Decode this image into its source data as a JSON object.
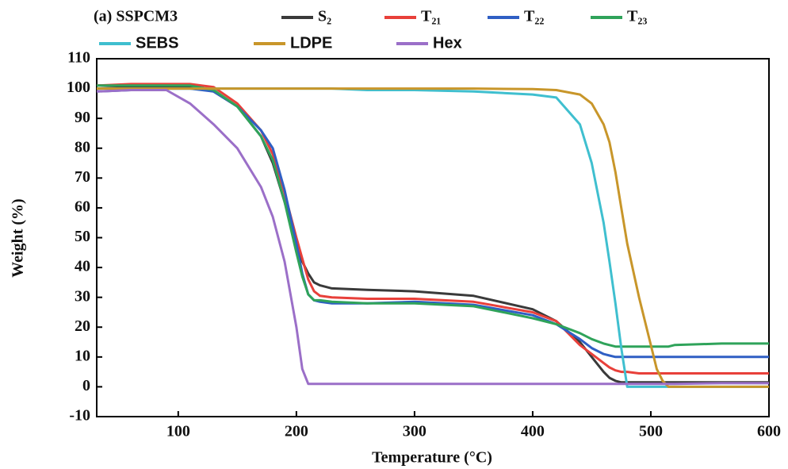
{
  "chart_data": {
    "type": "line",
    "title": "(a) SSPCM3",
    "x_label": "Temperature (°C)",
    "y_label": "Weight (%)",
    "x": [
      31,
      60,
      90,
      110,
      130,
      150,
      170,
      180,
      190,
      200,
      205,
      210,
      215,
      220,
      230,
      260,
      300,
      350,
      400,
      420,
      440,
      450,
      460,
      465,
      470,
      475,
      480,
      490,
      500,
      505,
      510,
      515,
      520,
      560,
      600
    ],
    "series": [
      {
        "name": "S₂",
        "color": "#3a3a3a",
        "values": [
          100,
          100.5,
          100.5,
          100.5,
          99,
          94,
          84,
          75,
          62,
          48,
          42,
          38,
          35,
          34,
          33,
          32.5,
          32,
          30.5,
          26,
          22,
          15,
          10,
          5,
          3,
          2,
          1.5,
          1.5,
          1.5,
          1.5,
          1.5,
          1.5,
          1.5,
          1.5,
          1.5,
          1.5
        ]
      },
      {
        "name": "T₂₁",
        "color": "#e8403a",
        "values": [
          101,
          101.5,
          101.5,
          101.5,
          100.5,
          95,
          86,
          78,
          65,
          50,
          43,
          36,
          32,
          30.5,
          30,
          29.5,
          29.5,
          28.5,
          25,
          22,
          14,
          11,
          8,
          6.5,
          5.5,
          5,
          5,
          4.5,
          4.5,
          4.5,
          4.5,
          4.5,
          4.5,
          4.5,
          4.5
        ]
      },
      {
        "name": "T₂₂",
        "color": "#2f5fc4",
        "values": [
          99,
          99.5,
          100,
          100,
          99,
          94,
          86,
          80,
          66,
          48,
          38,
          31,
          29,
          28.5,
          28,
          28,
          28.5,
          27.5,
          24,
          21,
          16,
          13,
          11,
          10.5,
          10,
          10,
          10,
          10,
          10,
          10,
          10,
          10,
          10,
          10,
          10
        ]
      },
      {
        "name": "T₂₃",
        "color": "#2fa35a",
        "values": [
          101,
          101,
          101,
          101,
          99.5,
          94,
          84,
          76,
          62,
          45,
          37,
          31,
          29,
          29,
          28.5,
          28,
          28,
          27,
          23,
          21,
          18,
          16,
          14.5,
          14,
          13.5,
          13.5,
          13.5,
          13.5,
          13.5,
          13.5,
          13.5,
          13.5,
          14,
          14.5,
          14.5
        ]
      },
      {
        "name": "SEBS",
        "color": "#3fbfcf",
        "values": [
          100,
          100,
          100,
          100,
          100,
          100,
          100,
          100,
          100,
          100,
          100,
          100,
          100,
          100,
          100,
          99.5,
          99.5,
          99,
          98,
          97,
          88,
          75,
          55,
          42,
          28,
          13,
          0,
          0,
          0,
          0,
          0,
          0,
          0,
          0,
          0
        ]
      },
      {
        "name": "LDPE",
        "color": "#c8962a",
        "values": [
          100,
          100,
          100,
          100,
          100,
          100,
          100,
          100,
          100,
          100,
          100,
          100,
          100,
          100,
          100,
          100,
          100,
          100,
          99.8,
          99.5,
          98,
          95,
          88,
          82,
          72,
          60,
          48,
          30,
          14,
          6,
          2,
          0,
          0,
          0,
          0
        ]
      },
      {
        "name": "Hex",
        "color": "#9b6fc8",
        "values": [
          99,
          99.5,
          99.5,
          95,
          88,
          80,
          67,
          57,
          42,
          20,
          6,
          1,
          1,
          1,
          1,
          1,
          1,
          1,
          1,
          1,
          1,
          1,
          1,
          1,
          1,
          1,
          1,
          1,
          1,
          1,
          1,
          1,
          1,
          1.2,
          1.2
        ]
      }
    ],
    "xlim": [
      31,
      600
    ],
    "xticks": [
      100,
      200,
      300,
      400,
      500,
      600
    ],
    "ylim": [
      -10,
      110
    ],
    "yticks": [
      -10,
      0,
      10,
      20,
      30,
      40,
      50,
      60,
      70,
      80,
      90,
      100,
      110
    ],
    "grid": false
  }
}
